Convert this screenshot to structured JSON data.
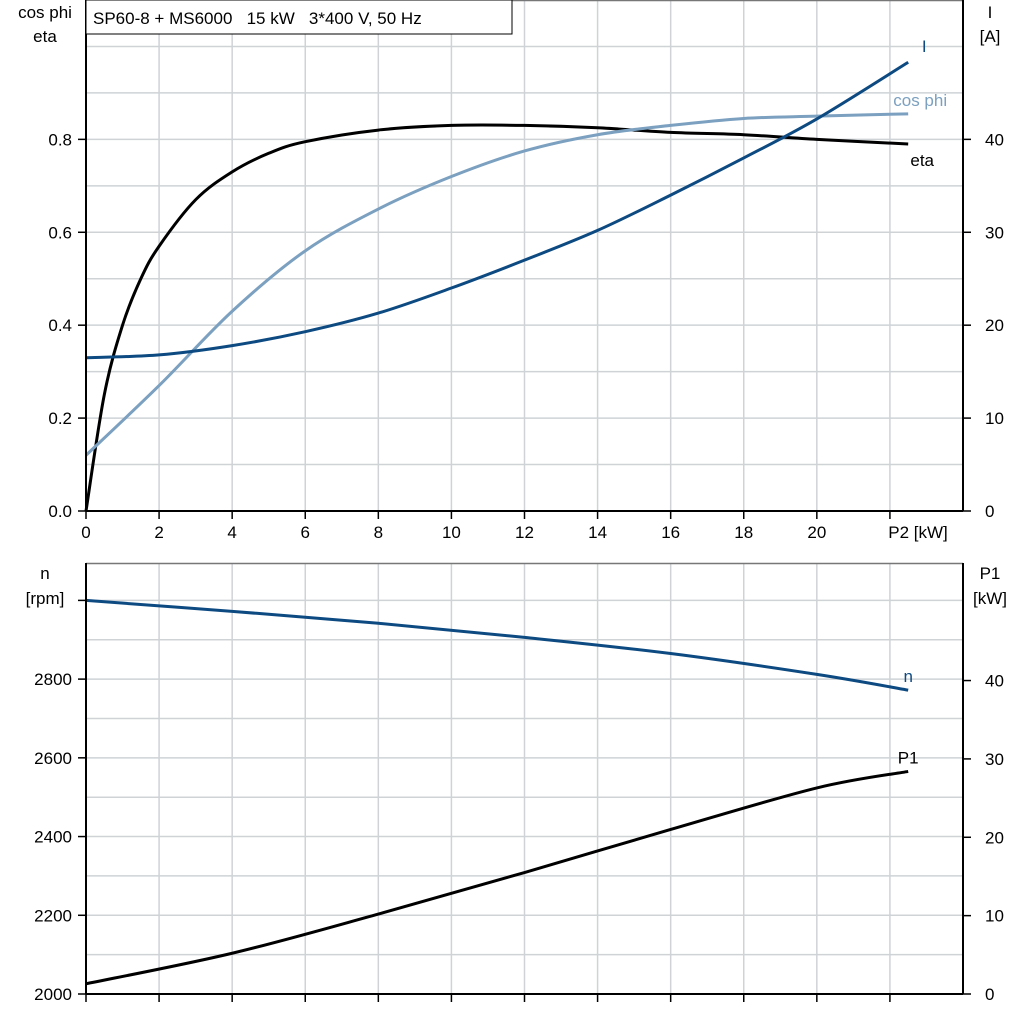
{
  "chart_data": [
    {
      "type": "line",
      "title": "SP60-8 + MS6000   15 kW   3*400 V, 50 Hz",
      "xlabel": "P2 [kW]",
      "ylabel_left": [
        "cos phi",
        "eta"
      ],
      "ylabel_right": [
        "I",
        "[A]"
      ],
      "xlim": [
        0,
        24
      ],
      "ylim_left": [
        0,
        1.1
      ],
      "ylim_right": [
        0,
        55
      ],
      "x_ticks": [
        "0",
        "2",
        "4",
        "6",
        "8",
        "10",
        "12",
        "14",
        "16",
        "18",
        "20"
      ],
      "y_ticks_left": [
        "0.0",
        "0.2",
        "0.4",
        "0.6",
        "0.8"
      ],
      "y_ticks_right": [
        "0",
        "10",
        "20",
        "30",
        "40"
      ],
      "grid": true,
      "series": [
        {
          "name": "eta",
          "axis": "left",
          "color": "#000000",
          "x": [
            0,
            0.5,
            1,
            1.5,
            2,
            3,
            4,
            5,
            6,
            8,
            10,
            12,
            14,
            16,
            18,
            20,
            22.5
          ],
          "y": [
            0,
            0.25,
            0.4,
            0.5,
            0.57,
            0.67,
            0.73,
            0.77,
            0.795,
            0.82,
            0.83,
            0.83,
            0.825,
            0.815,
            0.81,
            0.8,
            0.79
          ]
        },
        {
          "name": "cos phi",
          "axis": "left",
          "color": "#7ba0c0",
          "x": [
            0,
            2,
            4,
            6,
            8,
            10,
            12,
            14,
            16,
            18,
            20,
            22.5
          ],
          "y": [
            0.12,
            0.27,
            0.43,
            0.56,
            0.65,
            0.72,
            0.775,
            0.81,
            0.83,
            0.845,
            0.85,
            0.855
          ]
        },
        {
          "name": "I",
          "axis": "right",
          "color": "#0d4a82",
          "x": [
            0,
            2,
            4,
            6,
            8,
            10,
            12,
            14,
            16,
            18,
            20,
            22.5
          ],
          "y": [
            16.5,
            16.8,
            17.8,
            19.3,
            21.3,
            24,
            27,
            30.2,
            34,
            38,
            42.2,
            48.3
          ]
        }
      ]
    },
    {
      "type": "line",
      "ylabel_left": [
        "n",
        "[rpm]"
      ],
      "ylabel_right": [
        "P1",
        "[kW]"
      ],
      "xlim": [
        0,
        24
      ],
      "ylim_left": [
        2000,
        3095
      ],
      "ylim_right": [
        0,
        55
      ],
      "y_ticks_left": [
        "2000",
        "2200",
        "2400",
        "2600",
        "2800"
      ],
      "y_ticks_right": [
        "0",
        "10",
        "20",
        "30",
        "40"
      ],
      "grid": true,
      "series": [
        {
          "name": "n",
          "axis": "left",
          "color": "#0d4a82",
          "x": [
            0,
            4,
            8,
            12,
            16,
            20,
            22.5
          ],
          "y": [
            3000,
            2972,
            2942,
            2906,
            2865,
            2812,
            2772
          ]
        },
        {
          "name": "P1",
          "axis": "right",
          "color": "#000000",
          "x": [
            0,
            4,
            8,
            12,
            16,
            20,
            22.5
          ],
          "y": [
            1.3,
            5.2,
            10.2,
            15.5,
            21,
            26.3,
            28.4
          ]
        }
      ]
    }
  ]
}
